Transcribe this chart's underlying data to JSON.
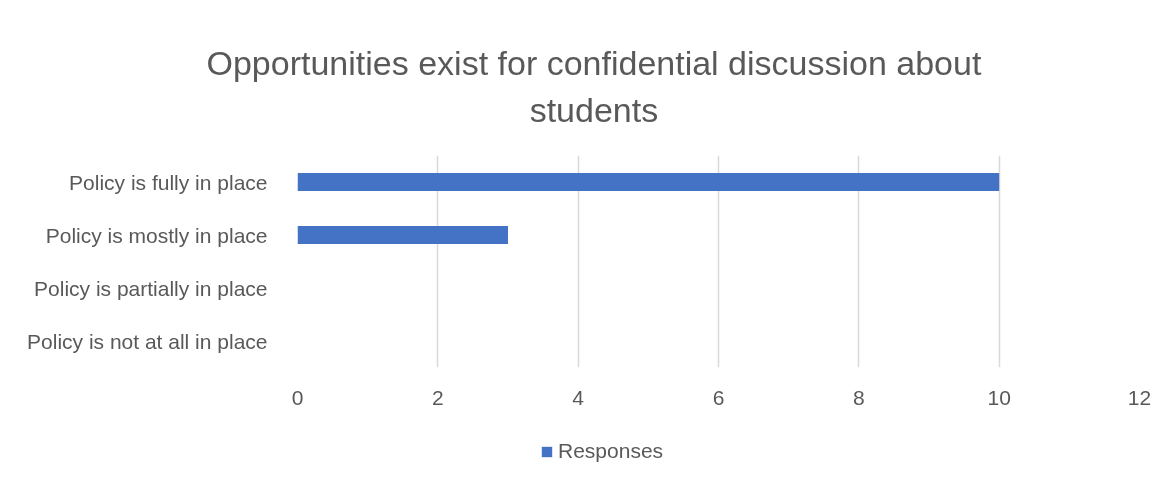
{
  "chart_data": {
    "type": "bar",
    "orientation": "horizontal",
    "title": "Opportunities exist for confidential discussion about students",
    "categories": [
      "Policy is fully in place",
      "Policy is mostly in place",
      "Policy is partially in place",
      "Policy is not at all in place"
    ],
    "series": [
      {
        "name": "Responses",
        "color": "#4472c4",
        "values": [
          10,
          3,
          0,
          0
        ]
      }
    ],
    "xlim": [
      0,
      12
    ],
    "xticks": [
      0,
      2,
      4,
      6,
      8,
      10,
      12
    ],
    "grid": "x",
    "legend": "bottom"
  }
}
